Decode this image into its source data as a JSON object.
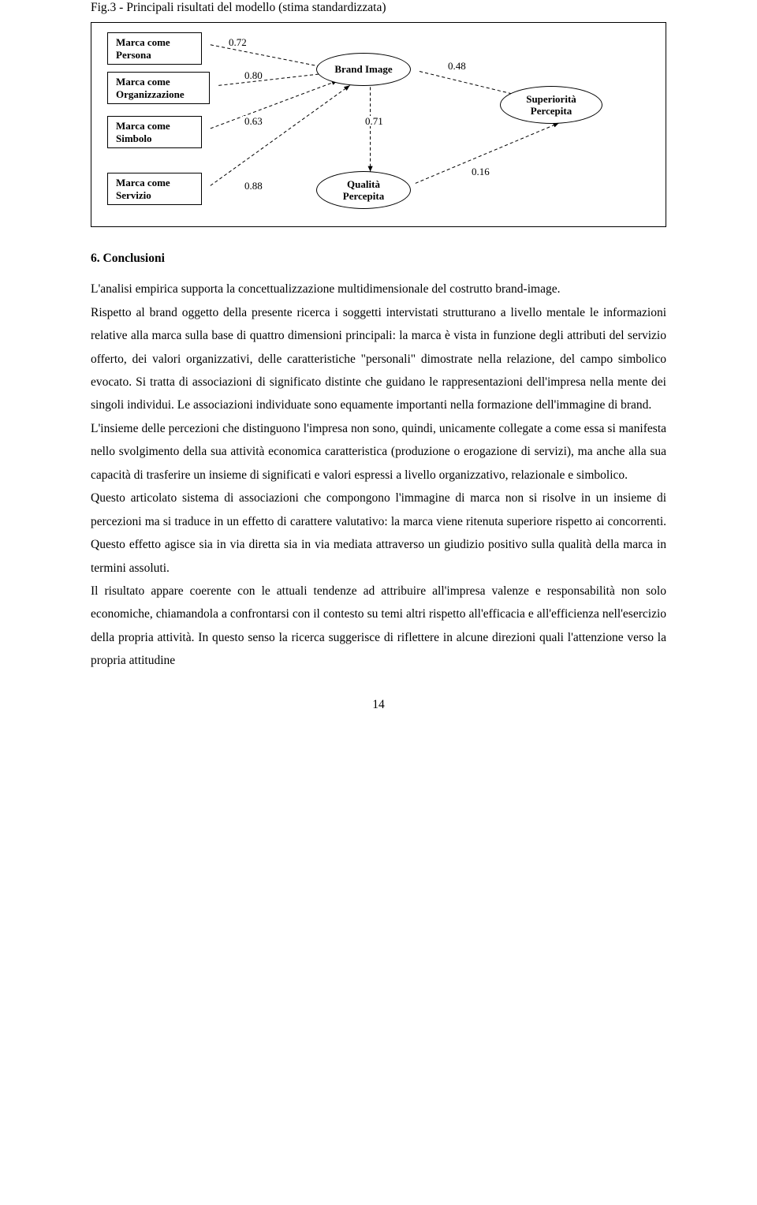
{
  "figure": {
    "caption": "Fig.3 - Principali risultati del modello (stima standardizzata)",
    "nodes": {
      "persona": "Marca come\nPersona",
      "organizzazione": "Marca come\nOrganizzazione",
      "simbolo": "Marca come\nSimbolo",
      "servizio": "Marca come\nServizio",
      "brand_image": "Brand Image",
      "qualita": "Qualità\nPercepita",
      "superiorita": "Superiorità\nPercepita"
    },
    "edges": {
      "persona_bi": "0.72",
      "organizzazione_bi": "0.80",
      "simbolo_bi": "0.63",
      "servizio_bi": "0.88",
      "bi_qualita": "0.71",
      "bi_superiorita": "0.48",
      "qualita_superiorita": "0.16"
    },
    "style": {
      "node_border": "#000000",
      "edge_color": "#000000",
      "dash": "4,3",
      "background": "#ffffff",
      "rect_font_size": 13,
      "label_font_size": 13
    }
  },
  "section": {
    "heading": "6. Conclusioni",
    "para1": "L'analisi empirica supporta la concettualizzazione multidimensionale del costrutto brand-image.",
    "para2": "Rispetto al brand oggetto della presente ricerca i soggetti intervistati strutturano a livello mentale le informazioni relative alla marca sulla base di quattro dimensioni principali: la marca è vista in funzione degli attributi del servizio offerto, dei valori organizzativi, delle caratteristiche \"personali\" dimostrate nella relazione, del campo simbolico evocato. Si tratta di associazioni di significato distinte che guidano le rappresentazioni dell'impresa nella mente dei singoli individui. Le associazioni individuate sono equamente importanti nella formazione dell'immagine di brand.",
    "para3": "L'insieme delle percezioni che distinguono l'impresa non sono, quindi, unicamente collegate a come essa si manifesta nello svolgimento della sua attività economica caratteristica (produzione o erogazione di servizi), ma anche alla sua capacità di trasferire un insieme di significati e valori espressi a livello organizzativo, relazionale e simbolico.",
    "para4": "Questo articolato sistema di associazioni che compongono l'immagine di marca non si risolve in un insieme di percezioni ma si traduce in un effetto di carattere valutativo: la marca viene ritenuta superiore rispetto ai concorrenti. Questo effetto agisce sia in via diretta sia in via mediata attraverso un giudizio positivo sulla qualità della marca in termini assoluti.",
    "para5": "Il risultato appare coerente con le attuali tendenze ad attribuire all'impresa valenze e responsabilità non solo economiche, chiamandola a confrontarsi con il contesto su temi altri rispetto all'efficacia e all'efficienza nell'esercizio della propria attività. In questo senso la ricerca suggerisce di riflettere in alcune direzioni quali l'attenzione verso la propria attitudine"
  },
  "page_number": "14"
}
